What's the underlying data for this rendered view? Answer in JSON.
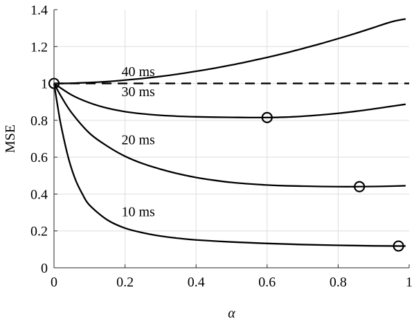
{
  "chart_data": {
    "type": "line",
    "title": "",
    "xlabel": "α",
    "ylabel": "MSE",
    "xlim": [
      0,
      1
    ],
    "ylim": [
      0,
      1.4
    ],
    "xticks": [
      0,
      0.2,
      0.4,
      0.6,
      0.8,
      1
    ],
    "xtick_labels": [
      "0",
      "0.2",
      "0.4",
      "0.6",
      "0.8",
      "1"
    ],
    "yticks": [
      0,
      0.2,
      0.4,
      0.6,
      0.8,
      1,
      1.2,
      1.4
    ],
    "ytick_labels": [
      "0",
      "0.2",
      "0.4",
      "0.6",
      "0.8",
      "1",
      "1.2",
      "1.4"
    ],
    "grid": true,
    "colors": {
      "line": "#000000",
      "grid": "#dedede",
      "axis": "#262626"
    },
    "series": [
      {
        "name": "40 ms",
        "x": [
          0,
          0.05,
          0.1,
          0.15,
          0.2,
          0.25,
          0.3,
          0.35,
          0.4,
          0.45,
          0.5,
          0.55,
          0.6,
          0.65,
          0.7,
          0.75,
          0.8,
          0.85,
          0.9,
          0.95,
          0.99
        ],
        "values": [
          1.0,
          1.001,
          1.005,
          1.01,
          1.018,
          1.027,
          1.038,
          1.051,
          1.066,
          1.082,
          1.1,
          1.12,
          1.141,
          1.164,
          1.189,
          1.215,
          1.243,
          1.272,
          1.303,
          1.334,
          1.35
        ]
      },
      {
        "name": "30 ms",
        "x": [
          0,
          0.05,
          0.1,
          0.15,
          0.2,
          0.25,
          0.3,
          0.35,
          0.4,
          0.45,
          0.5,
          0.55,
          0.6,
          0.65,
          0.7,
          0.75,
          0.8,
          0.85,
          0.9,
          0.95,
          0.99
        ],
        "values": [
          1.0,
          0.937,
          0.895,
          0.866,
          0.847,
          0.835,
          0.827,
          0.822,
          0.819,
          0.817,
          0.816,
          0.815,
          0.815,
          0.817,
          0.822,
          0.829,
          0.838,
          0.849,
          0.862,
          0.876,
          0.887
        ]
      },
      {
        "name": "20 ms",
        "x": [
          0,
          0.02,
          0.05,
          0.1,
          0.15,
          0.2,
          0.25,
          0.3,
          0.35,
          0.4,
          0.45,
          0.5,
          0.55,
          0.6,
          0.65,
          0.7,
          0.75,
          0.8,
          0.85,
          0.9,
          0.95,
          0.99
        ],
        "values": [
          1.0,
          0.93,
          0.84,
          0.73,
          0.66,
          0.605,
          0.565,
          0.535,
          0.51,
          0.49,
          0.475,
          0.463,
          0.455,
          0.449,
          0.445,
          0.443,
          0.441,
          0.44,
          0.44,
          0.441,
          0.443,
          0.445
        ]
      },
      {
        "name": "10 ms",
        "x": [
          0,
          0.01,
          0.02,
          0.04,
          0.06,
          0.08,
          0.1,
          0.15,
          0.2,
          0.25,
          0.3,
          0.35,
          0.4,
          0.5,
          0.6,
          0.7,
          0.8,
          0.9,
          0.97,
          0.99
        ],
        "values": [
          1.0,
          0.88,
          0.77,
          0.6,
          0.48,
          0.4,
          0.34,
          0.26,
          0.215,
          0.19,
          0.172,
          0.16,
          0.151,
          0.14,
          0.132,
          0.126,
          0.122,
          0.119,
          0.118,
          0.118
        ]
      }
    ],
    "reference_line": {
      "y": 1,
      "style": "dashed"
    },
    "markers": [
      {
        "x": 0,
        "y": 1.0
      },
      {
        "x": 0.6,
        "y": 0.815
      },
      {
        "x": 0.86,
        "y": 0.44
      },
      {
        "x": 0.97,
        "y": 0.118
      }
    ]
  }
}
